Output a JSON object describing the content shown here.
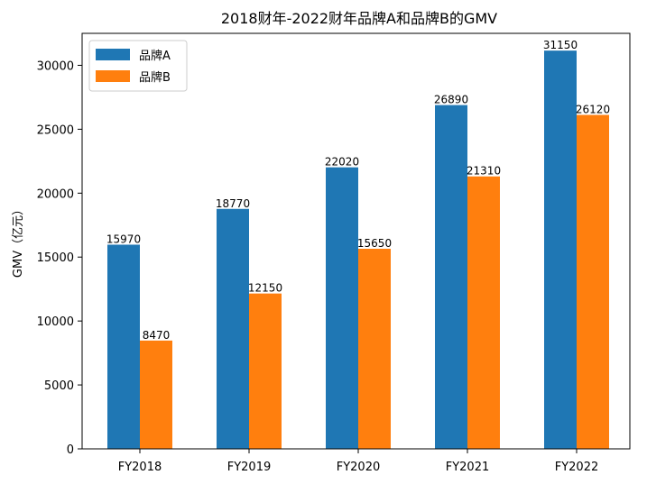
{
  "chart_data": {
    "type": "bar",
    "title": "2018财年-2022财年品牌A和品牌B的GMV",
    "xlabel": "",
    "ylabel": "GMV（亿元）",
    "categories": [
      "FY2018",
      "FY2019",
      "FY2020",
      "FY2021",
      "FY2022"
    ],
    "series": [
      {
        "name": "品牌A",
        "color": "#1f77b4",
        "values": [
          15970,
          18770,
          22020,
          26890,
          31150
        ]
      },
      {
        "name": "品牌B",
        "color": "#ff7f0e",
        "values": [
          8470,
          12150,
          15650,
          21310,
          26120
        ]
      }
    ],
    "ylim": [
      0,
      32500
    ],
    "yticks": [
      0,
      5000,
      10000,
      15000,
      20000,
      25000,
      30000
    ],
    "legend": "top-left",
    "grid": false
  }
}
